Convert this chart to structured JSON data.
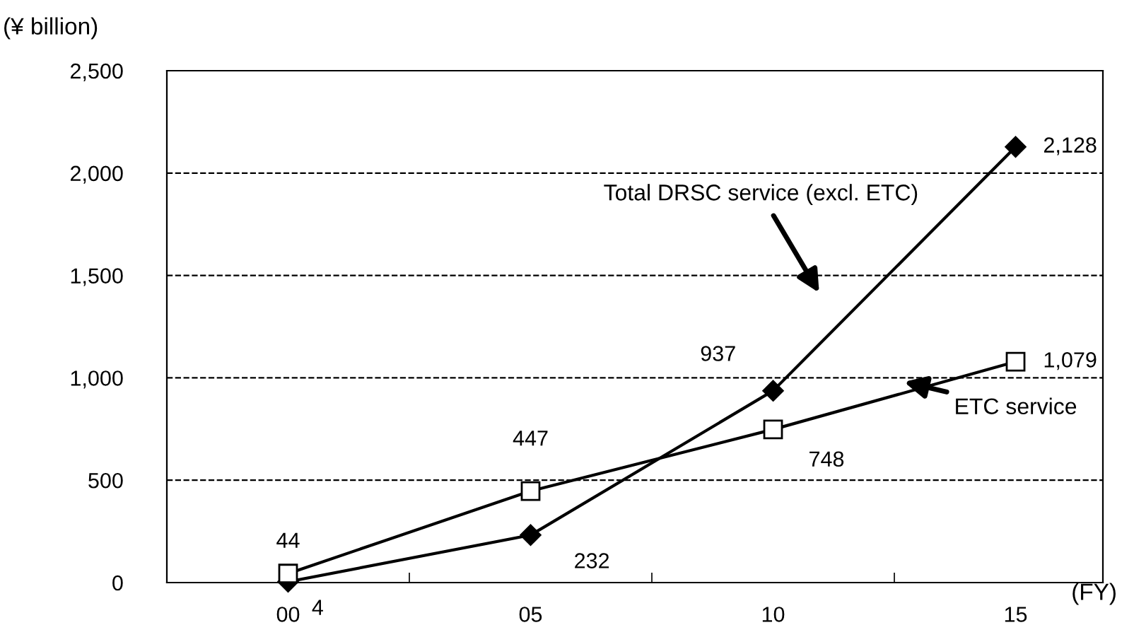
{
  "chart_data": {
    "type": "line",
    "ylabel": "(¥ billion)",
    "xlabel": "(FY)",
    "categories": [
      "00",
      "05",
      "10",
      "15"
    ],
    "series": [
      {
        "name": "Total DRSC service (excl. ETC)",
        "color": "#000000",
        "marker": "diamond",
        "values": [
          4,
          232,
          937,
          2128
        ],
        "value_labels": [
          "4",
          "232",
          "937",
          "2,128"
        ]
      },
      {
        "name": "ETC service",
        "color": "#000000",
        "marker": "square",
        "values": [
          44,
          447,
          748,
          1079
        ],
        "value_labels": [
          "44",
          "447",
          "748",
          "1,079"
        ]
      }
    ],
    "ylim": [
      0,
      2500
    ],
    "yticks": [
      0,
      {
        "value": 500,
        "label": "500"
      },
      {
        "value": 1000,
        "label": "1,000"
      },
      {
        "value": 1500,
        "label": "1,500"
      },
      {
        "value": 2000,
        "label": "2,000"
      },
      {
        "value": 2500,
        "label": "2,500"
      }
    ],
    "grid": "y",
    "legend": false,
    "line_style": "solid"
  }
}
